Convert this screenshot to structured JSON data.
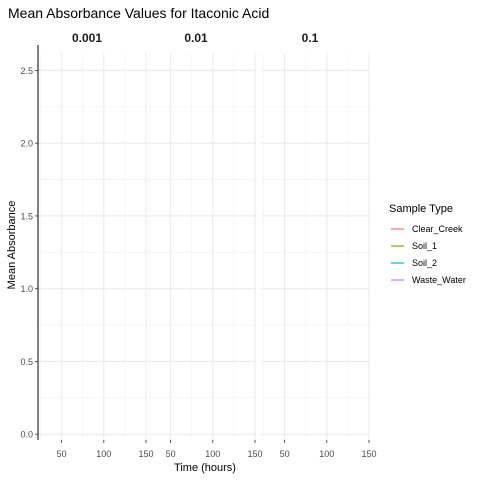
{
  "chart_data": {
    "type": "line",
    "title": "Mean Absorbance Values for Itaconic Acid",
    "xlabel": "Time (hours)",
    "ylabel": "Mean Absorbance",
    "facets": [
      "0.001",
      "0.01",
      "0.1"
    ],
    "x_ticks": [
      "50",
      "100",
      "150"
    ],
    "x_tick_values": [
      50,
      100,
      150
    ],
    "xlim": [
      22,
      150
    ],
    "y_ticks": [
      "0.0",
      "0.5",
      "1.0",
      "1.5",
      "2.0",
      "2.5"
    ],
    "y_tick_values": [
      0,
      0.5,
      1.0,
      1.5,
      2.0,
      2.5
    ],
    "ylim": [
      -0.04,
      2.62
    ],
    "grid": true,
    "legend_position": "right",
    "legend_title": "Sample Type",
    "series": [
      {
        "name": "Clear_Creek",
        "color": "#F8766D",
        "points": []
      },
      {
        "name": "Soil_1",
        "color": "#7CAE00",
        "points": []
      },
      {
        "name": "Soil_2",
        "color": "#00BFC4",
        "points": []
      },
      {
        "name": "Waste_Water",
        "color": "#C77CFF",
        "points": []
      }
    ]
  }
}
